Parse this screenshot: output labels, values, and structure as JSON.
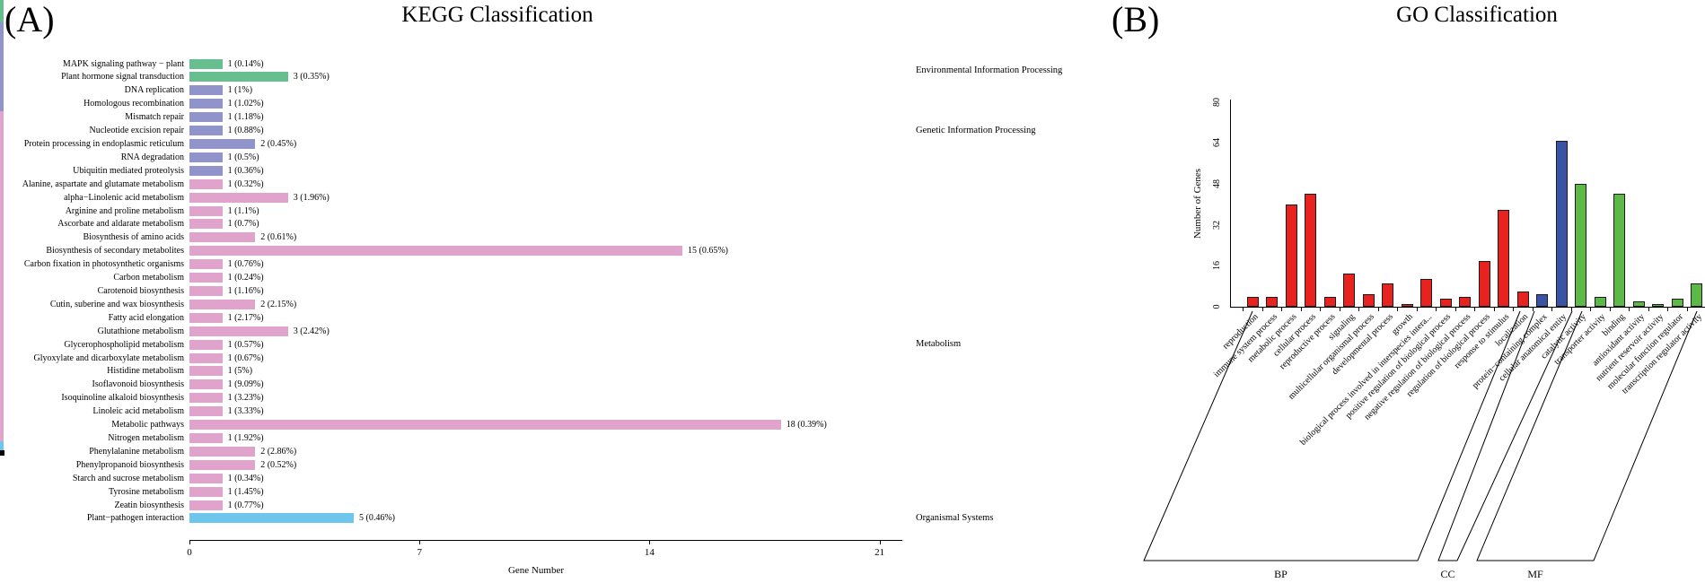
{
  "chart_data": [
    {
      "id": "kegg",
      "type": "bar",
      "orientation": "horizontal",
      "panel_label": "(A)",
      "title": "KEGG Classification",
      "xlabel": "Gene Number",
      "xlim": [
        0,
        21.7
      ],
      "x_ticks": [
        "0",
        "7",
        "14",
        "21"
      ],
      "grid": false,
      "categories": [
        "MAPK signaling pathway − plant",
        "Plant hormone signal transduction",
        "DNA replication",
        "Homologous recombination",
        "Mismatch repair",
        "Nucleotide excision repair",
        "Protein processing in endoplasmic reticulum",
        "RNA degradation",
        "Ubiquitin mediated proteolysis",
        "Alanine, aspartate and glutamate metabolism",
        "alpha−Linolenic acid metabolism",
        "Arginine and proline metabolism",
        "Ascorbate and aldarate metabolism",
        "Biosynthesis of amino acids",
        "Biosynthesis of secondary metabolites",
        "Carbon fixation in photosynthetic organisms",
        "Carbon metabolism",
        "Carotenoid biosynthesis",
        "Cutin, suberine and wax biosynthesis",
        "Fatty acid elongation",
        "Glutathione metabolism",
        "Glycerophospholipid metabolism",
        "Glyoxylate and dicarboxylate metabolism",
        "Histidine metabolism",
        "Isoflavonoid biosynthesis",
        "Isoquinoline alkaloid biosynthesis",
        "Linoleic acid metabolism",
        "Metabolic pathways",
        "Nitrogen metabolism",
        "Phenylalanine metabolism",
        "Phenylpropanoid biosynthesis",
        "Starch and sucrose metabolism",
        "Tyrosine metabolism",
        "Zeatin biosynthesis",
        "Plant−pathogen interaction"
      ],
      "values": [
        1,
        3,
        1,
        1,
        1,
        1,
        2,
        1,
        1,
        1,
        3,
        1,
        1,
        2,
        15,
        1,
        1,
        1,
        2,
        1,
        3,
        1,
        1,
        1,
        1,
        1,
        1,
        18,
        1,
        2,
        2,
        1,
        1,
        1,
        5
      ],
      "bar_labels": [
        "1 (0.14%)",
        "3 (0.35%)",
        "1 (1%)",
        "1 (1.02%)",
        "1 (1.18%)",
        "1 (0.88%)",
        "2 (0.45%)",
        "1 (0.5%)",
        "1 (0.36%)",
        "1 (0.32%)",
        "3 (1.96%)",
        "1 (1.1%)",
        "1 (0.7%)",
        "2 (0.61%)",
        "15 (0.65%)",
        "1 (0.76%)",
        "1 (0.24%)",
        "1 (1.16%)",
        "2 (2.15%)",
        "1 (2.17%)",
        "3 (2.42%)",
        "1 (0.57%)",
        "1 (0.67%)",
        "1 (5%)",
        "1 (9.09%)",
        "1 (3.23%)",
        "1 (3.33%)",
        "18 (0.39%)",
        "1 (1.92%)",
        "2 (2.86%)",
        "2 (0.52%)",
        "1 (0.34%)",
        "1 (1.45%)",
        "1 (0.77%)",
        "5 (0.46%)"
      ],
      "groups": [
        {
          "label": "Environmental Information Processing",
          "color": "#67BE8E",
          "first_row": 0,
          "last_row": 1
        },
        {
          "label": "Genetic Information Processing",
          "color": "#9193CB",
          "first_row": 2,
          "last_row": 8
        },
        {
          "label": "Metabolism",
          "color": "#DFA3CC",
          "first_row": 9,
          "last_row": 33
        },
        {
          "label": "Organismal Systems",
          "color": "#6FC6ED",
          "first_row": 34,
          "last_row": 34
        }
      ]
    },
    {
      "id": "go",
      "type": "bar",
      "orientation": "vertical",
      "panel_label": "(B)",
      "title": "GO Classification",
      "ylabel": "Number of Genes",
      "ylim": [
        0,
        80
      ],
      "y_ticks": [
        0,
        16,
        32,
        48,
        64,
        80
      ],
      "grid": false,
      "categories": [
        "reproduction",
        "immune system process",
        "metabolic process",
        "cellular process",
        "reproductive process",
        "signaling",
        "multicellular organismal process",
        "developmental process",
        "growth",
        "biological process involved in interspecies intera...",
        "positive regulation of biological process",
        "negative regulation of biological process",
        "regulation of biological process",
        "response to stimulus",
        "localization",
        "protein−containing complex",
        "cellular anatomical entity",
        "catalytic activity",
        "transporter activity",
        "binding",
        "antioxidant activity",
        "nutrient reservoir activity",
        "molecular function regulator",
        "transcription regulator activity"
      ],
      "values": [
        4,
        4,
        40,
        44,
        4,
        13,
        5,
        9,
        1,
        11,
        3,
        4,
        18,
        38,
        6,
        5,
        65,
        48,
        4,
        44,
        2,
        1,
        3,
        9
      ],
      "groups": [
        {
          "label": "BP",
          "color": "#E8231F",
          "count": 15
        },
        {
          "label": "CC",
          "color": "#3A53A4",
          "count": 2
        },
        {
          "label": "MF",
          "color": "#5CB947",
          "count": 7
        }
      ]
    }
  ]
}
